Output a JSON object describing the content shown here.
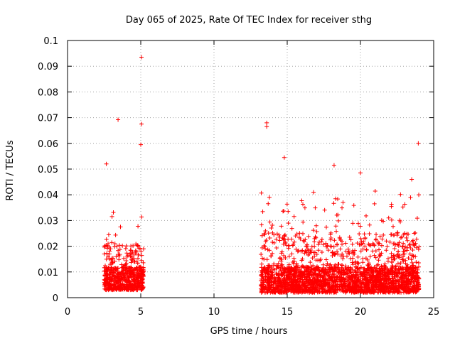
{
  "chart_data": {
    "type": "scatter",
    "title": "Day 065 of 2025, Rate Of TEC Index for receiver sthg",
    "xlabel": "GPS time / hours",
    "ylabel": "ROTI / TECUs",
    "xlim": [
      0,
      25
    ],
    "ylim": [
      0,
      0.1
    ],
    "xticks": [
      0,
      5,
      10,
      15,
      20,
      25
    ],
    "yticks": [
      0,
      0.01,
      0.02,
      0.03,
      0.04,
      0.05,
      0.06,
      0.07,
      0.08,
      0.09,
      0.1
    ],
    "ytick_labels": [
      "0",
      "0.01",
      "0.02",
      "0.03",
      "0.04",
      "0.05",
      "0.06",
      "0.07",
      "0.08",
      "0.09",
      "0.1"
    ],
    "grid": true,
    "marker": "+",
    "color": "#ff0000",
    "series": [
      {
        "name": "ROTI",
        "notable_points": [
          {
            "x": 5.05,
            "y": 0.0935
          },
          {
            "x": 3.45,
            "y": 0.0692
          },
          {
            "x": 5.05,
            "y": 0.0675
          },
          {
            "x": 13.6,
            "y": 0.068
          },
          {
            "x": 13.6,
            "y": 0.0665
          },
          {
            "x": 23.95,
            "y": 0.06
          },
          {
            "x": 5.0,
            "y": 0.0595
          },
          {
            "x": 2.65,
            "y": 0.052
          },
          {
            "x": 14.8,
            "y": 0.0545
          },
          {
            "x": 18.2,
            "y": 0.0515
          },
          {
            "x": 20.0,
            "y": 0.0485
          },
          {
            "x": 23.5,
            "y": 0.046
          }
        ],
        "clusters": [
          {
            "x_start": 2.5,
            "x_end": 5.2,
            "y_base": 0.003,
            "y_typical": 0.012,
            "y_max_envelope": 0.035
          },
          {
            "x_start": 13.2,
            "x_end": 24.0,
            "y_base": 0.002,
            "y_typical": 0.012,
            "y_max_envelope": 0.042
          }
        ]
      }
    ]
  }
}
